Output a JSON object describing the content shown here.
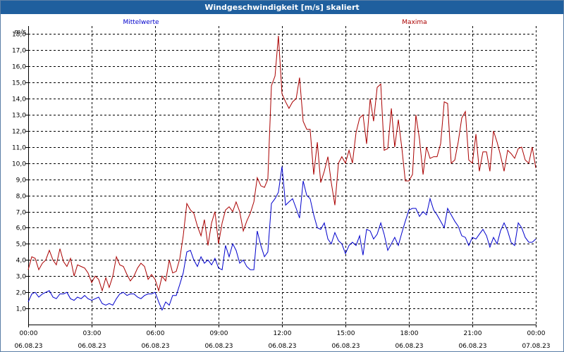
{
  "window": {
    "title": "Windgeschwindigkeit [m/s] skaliert"
  },
  "chart_data": {
    "type": "line",
    "title": "Windgeschwindigkeit [m/s] skaliert",
    "ylabel": "m/s",
    "ylim": [
      0,
      18.5
    ],
    "y_ticks": [
      "1,0",
      "2,0",
      "3,0",
      "4,0",
      "5,0",
      "6,0",
      "7,0",
      "8,0",
      "9,0",
      "10,0",
      "11,0",
      "12,0",
      "13,0",
      "14,0",
      "15,0",
      "16,0",
      "17,0",
      "18,0"
    ],
    "xlim_hours": [
      0,
      24
    ],
    "x_ticks": [
      {
        "time": "00:00",
        "date": "06.08.23"
      },
      {
        "time": "03:00",
        "date": "06.08.23"
      },
      {
        "time": "06:00",
        "date": "06.08.23"
      },
      {
        "time": "09:00",
        "date": "06.08.23"
      },
      {
        "time": "12:00",
        "date": "06.08.23"
      },
      {
        "time": "15:00",
        "date": "06.08.23"
      },
      {
        "time": "18:00",
        "date": "06.08.23"
      },
      {
        "time": "21:00",
        "date": "06.08.23"
      },
      {
        "time": "00:00",
        "date": "07.08.23"
      }
    ],
    "grid": true,
    "legend_placement": "top",
    "series": [
      {
        "name": "Mittelwerte",
        "color": "#0000cc",
        "points": [
          [
            0,
            1.4
          ],
          [
            0.17,
            1.9
          ],
          [
            0.33,
            2.0
          ],
          [
            0.5,
            1.7
          ],
          [
            0.67,
            1.9
          ],
          [
            0.83,
            2.0
          ],
          [
            1.0,
            2.1
          ],
          [
            1.17,
            1.7
          ],
          [
            1.33,
            1.6
          ],
          [
            1.5,
            1.9
          ],
          [
            1.67,
            1.9
          ],
          [
            1.83,
            2.0
          ],
          [
            2.0,
            1.6
          ],
          [
            2.17,
            1.5
          ],
          [
            2.33,
            1.7
          ],
          [
            2.5,
            1.6
          ],
          [
            2.67,
            1.8
          ],
          [
            2.83,
            1.6
          ],
          [
            3.0,
            1.5
          ],
          [
            3.17,
            1.6
          ],
          [
            3.33,
            1.7
          ],
          [
            3.5,
            1.3
          ],
          [
            3.67,
            1.2
          ],
          [
            3.83,
            1.3
          ],
          [
            4.0,
            1.2
          ],
          [
            4.17,
            1.6
          ],
          [
            4.33,
            1.9
          ],
          [
            4.5,
            2.0
          ],
          [
            4.67,
            1.8
          ],
          [
            4.83,
            1.9
          ],
          [
            5.0,
            1.9
          ],
          [
            5.17,
            1.7
          ],
          [
            5.33,
            1.6
          ],
          [
            5.5,
            1.8
          ],
          [
            5.67,
            1.9
          ],
          [
            5.83,
            1.9
          ],
          [
            6.0,
            2.0
          ],
          [
            6.17,
            1.4
          ],
          [
            6.33,
            0.9
          ],
          [
            6.5,
            1.4
          ],
          [
            6.67,
            1.2
          ],
          [
            6.83,
            1.8
          ],
          [
            7.0,
            1.8
          ],
          [
            7.17,
            2.5
          ],
          [
            7.33,
            3.2
          ],
          [
            7.5,
            4.5
          ],
          [
            7.67,
            4.6
          ],
          [
            7.83,
            4.0
          ],
          [
            8.0,
            3.6
          ],
          [
            8.17,
            4.2
          ],
          [
            8.33,
            3.8
          ],
          [
            8.5,
            4.0
          ],
          [
            8.67,
            3.7
          ],
          [
            8.83,
            4.1
          ],
          [
            9.0,
            3.5
          ],
          [
            9.17,
            3.4
          ],
          [
            9.33,
            4.9
          ],
          [
            9.5,
            4.2
          ],
          [
            9.67,
            5.0
          ],
          [
            9.83,
            4.6
          ],
          [
            10.0,
            3.8
          ],
          [
            10.17,
            4.0
          ],
          [
            10.33,
            3.6
          ],
          [
            10.5,
            3.4
          ],
          [
            10.67,
            3.4
          ],
          [
            10.83,
            5.8
          ],
          [
            11.0,
            4.9
          ],
          [
            11.17,
            4.2
          ],
          [
            11.33,
            4.5
          ],
          [
            11.5,
            7.5
          ],
          [
            11.67,
            7.8
          ],
          [
            11.83,
            8.2
          ],
          [
            12.0,
            9.8
          ],
          [
            12.17,
            7.4
          ],
          [
            12.33,
            7.6
          ],
          [
            12.5,
            7.8
          ],
          [
            12.67,
            7.2
          ],
          [
            12.83,
            6.6
          ],
          [
            13.0,
            8.9
          ],
          [
            13.17,
            8.0
          ],
          [
            13.33,
            7.8
          ],
          [
            13.5,
            6.8
          ],
          [
            13.67,
            6.0
          ],
          [
            13.83,
            5.9
          ],
          [
            14.0,
            6.3
          ],
          [
            14.17,
            5.3
          ],
          [
            14.33,
            5.0
          ],
          [
            14.5,
            5.7
          ],
          [
            14.67,
            5.2
          ],
          [
            14.83,
            5.0
          ],
          [
            15.0,
            4.4
          ],
          [
            15.17,
            4.9
          ],
          [
            15.33,
            5.1
          ],
          [
            15.5,
            4.9
          ],
          [
            15.67,
            5.5
          ],
          [
            15.83,
            4.3
          ],
          [
            16.0,
            5.9
          ],
          [
            16.17,
            5.8
          ],
          [
            16.33,
            5.3
          ],
          [
            16.5,
            5.6
          ],
          [
            16.67,
            6.3
          ],
          [
            16.83,
            5.6
          ],
          [
            17.0,
            4.6
          ],
          [
            17.17,
            5.0
          ],
          [
            17.33,
            5.4
          ],
          [
            17.5,
            4.9
          ],
          [
            17.67,
            5.7
          ],
          [
            17.83,
            6.4
          ],
          [
            18.0,
            7.1
          ],
          [
            18.17,
            7.2
          ],
          [
            18.33,
            7.2
          ],
          [
            18.5,
            6.7
          ],
          [
            18.67,
            7.0
          ],
          [
            18.83,
            6.8
          ],
          [
            19.0,
            7.8
          ],
          [
            19.17,
            7.1
          ],
          [
            19.33,
            6.8
          ],
          [
            19.5,
            6.4
          ],
          [
            19.67,
            6.0
          ],
          [
            19.83,
            7.2
          ],
          [
            20.0,
            6.8
          ],
          [
            20.17,
            6.4
          ],
          [
            20.33,
            6.1
          ],
          [
            20.5,
            5.5
          ],
          [
            20.67,
            5.4
          ],
          [
            20.83,
            4.9
          ],
          [
            21.0,
            5.4
          ],
          [
            21.17,
            5.3
          ],
          [
            21.33,
            5.6
          ],
          [
            21.5,
            5.9
          ],
          [
            21.67,
            5.5
          ],
          [
            21.83,
            4.8
          ],
          [
            22.0,
            5.4
          ],
          [
            22.17,
            5.0
          ],
          [
            22.33,
            5.8
          ],
          [
            22.5,
            6.3
          ],
          [
            22.67,
            5.8
          ],
          [
            22.83,
            5.1
          ],
          [
            23.0,
            4.9
          ],
          [
            23.17,
            6.3
          ],
          [
            23.33,
            6.0
          ],
          [
            23.5,
            5.4
          ],
          [
            23.67,
            5.1
          ],
          [
            23.83,
            5.1
          ],
          [
            24.0,
            5.3
          ]
        ]
      },
      {
        "name": "Maxima",
        "color": "#aa0000",
        "points": [
          [
            0,
            3.4
          ],
          [
            0.17,
            4.2
          ],
          [
            0.33,
            4.1
          ],
          [
            0.5,
            3.4
          ],
          [
            0.67,
            3.8
          ],
          [
            0.83,
            4.0
          ],
          [
            1.0,
            4.6
          ],
          [
            1.17,
            4.0
          ],
          [
            1.33,
            3.7
          ],
          [
            1.5,
            4.7
          ],
          [
            1.67,
            3.9
          ],
          [
            1.83,
            3.6
          ],
          [
            2.0,
            4.1
          ],
          [
            2.17,
            3.0
          ],
          [
            2.33,
            3.7
          ],
          [
            2.5,
            3.6
          ],
          [
            2.67,
            3.5
          ],
          [
            2.83,
            3.2
          ],
          [
            3.0,
            2.6
          ],
          [
            3.17,
            3.0
          ],
          [
            3.33,
            2.8
          ],
          [
            3.5,
            2.1
          ],
          [
            3.67,
            2.9
          ],
          [
            3.83,
            2.3
          ],
          [
            4.0,
            3.0
          ],
          [
            4.17,
            4.2
          ],
          [
            4.33,
            3.7
          ],
          [
            4.5,
            3.6
          ],
          [
            4.67,
            3.1
          ],
          [
            4.83,
            2.7
          ],
          [
            5.0,
            3.0
          ],
          [
            5.17,
            3.5
          ],
          [
            5.33,
            3.8
          ],
          [
            5.5,
            3.6
          ],
          [
            5.67,
            2.8
          ],
          [
            5.83,
            3.1
          ],
          [
            6.0,
            2.8
          ],
          [
            6.17,
            2.1
          ],
          [
            6.33,
            3.0
          ],
          [
            6.5,
            2.7
          ],
          [
            6.67,
            4.0
          ],
          [
            6.83,
            3.2
          ],
          [
            7.0,
            3.3
          ],
          [
            7.17,
            4.1
          ],
          [
            7.33,
            5.5
          ],
          [
            7.5,
            7.5
          ],
          [
            7.67,
            7.1
          ],
          [
            7.83,
            6.9
          ],
          [
            8.0,
            6.1
          ],
          [
            8.17,
            5.5
          ],
          [
            8.33,
            6.5
          ],
          [
            8.5,
            4.9
          ],
          [
            8.67,
            6.3
          ],
          [
            8.83,
            7.0
          ],
          [
            9.0,
            5.0
          ],
          [
            9.17,
            6.3
          ],
          [
            9.33,
            7.1
          ],
          [
            9.5,
            7.3
          ],
          [
            9.67,
            7.0
          ],
          [
            9.83,
            7.6
          ],
          [
            10.0,
            7.0
          ],
          [
            10.17,
            5.8
          ],
          [
            10.33,
            6.4
          ],
          [
            10.5,
            6.9
          ],
          [
            10.67,
            7.6
          ],
          [
            10.83,
            9.1
          ],
          [
            11.0,
            8.6
          ],
          [
            11.17,
            8.5
          ],
          [
            11.33,
            9.0
          ],
          [
            11.5,
            14.8
          ],
          [
            11.67,
            15.4
          ],
          [
            11.83,
            17.9
          ],
          [
            12.0,
            14.3
          ],
          [
            12.17,
            13.8
          ],
          [
            12.33,
            13.4
          ],
          [
            12.5,
            13.8
          ],
          [
            12.67,
            14.0
          ],
          [
            12.83,
            15.3
          ],
          [
            13.0,
            12.6
          ],
          [
            13.17,
            12.1
          ],
          [
            13.33,
            12.1
          ],
          [
            13.5,
            9.3
          ],
          [
            13.67,
            11.3
          ],
          [
            13.83,
            8.8
          ],
          [
            14.0,
            9.5
          ],
          [
            14.17,
            10.4
          ],
          [
            14.33,
            8.8
          ],
          [
            14.5,
            7.4
          ],
          [
            14.67,
            10.0
          ],
          [
            14.83,
            10.4
          ],
          [
            15.0,
            10.0
          ],
          [
            15.17,
            10.8
          ],
          [
            15.33,
            10.0
          ],
          [
            15.5,
            11.9
          ],
          [
            15.67,
            12.8
          ],
          [
            15.83,
            13.0
          ],
          [
            16.0,
            11.2
          ],
          [
            16.17,
            14.0
          ],
          [
            16.33,
            12.6
          ],
          [
            16.5,
            14.7
          ],
          [
            16.67,
            14.9
          ],
          [
            16.83,
            10.8
          ],
          [
            17.0,
            10.9
          ],
          [
            17.17,
            13.4
          ],
          [
            17.33,
            11.0
          ],
          [
            17.5,
            12.7
          ],
          [
            17.67,
            10.9
          ],
          [
            17.83,
            8.9
          ],
          [
            18.0,
            8.9
          ],
          [
            18.17,
            9.3
          ],
          [
            18.33,
            13.0
          ],
          [
            18.5,
            11.5
          ],
          [
            18.67,
            9.3
          ],
          [
            18.83,
            11.0
          ],
          [
            19.0,
            10.3
          ],
          [
            19.17,
            10.4
          ],
          [
            19.33,
            10.4
          ],
          [
            19.5,
            11.2
          ],
          [
            19.67,
            13.8
          ],
          [
            19.83,
            13.7
          ],
          [
            20.0,
            10.0
          ],
          [
            20.17,
            10.2
          ],
          [
            20.33,
            11.3
          ],
          [
            20.5,
            12.8
          ],
          [
            20.67,
            13.2
          ],
          [
            20.83,
            10.2
          ],
          [
            21.0,
            10.0
          ],
          [
            21.17,
            11.8
          ],
          [
            21.33,
            9.5
          ],
          [
            21.5,
            10.7
          ],
          [
            21.67,
            10.7
          ],
          [
            21.83,
            9.5
          ],
          [
            22.0,
            12.0
          ],
          [
            22.17,
            11.3
          ],
          [
            22.33,
            10.5
          ],
          [
            22.5,
            9.5
          ],
          [
            22.67,
            10.8
          ],
          [
            22.83,
            10.6
          ],
          [
            23.0,
            10.3
          ],
          [
            23.17,
            10.9
          ],
          [
            23.33,
            11.0
          ],
          [
            23.5,
            10.2
          ],
          [
            23.67,
            10.0
          ],
          [
            23.83,
            11.0
          ],
          [
            24.0,
            9.7
          ]
        ]
      }
    ]
  }
}
